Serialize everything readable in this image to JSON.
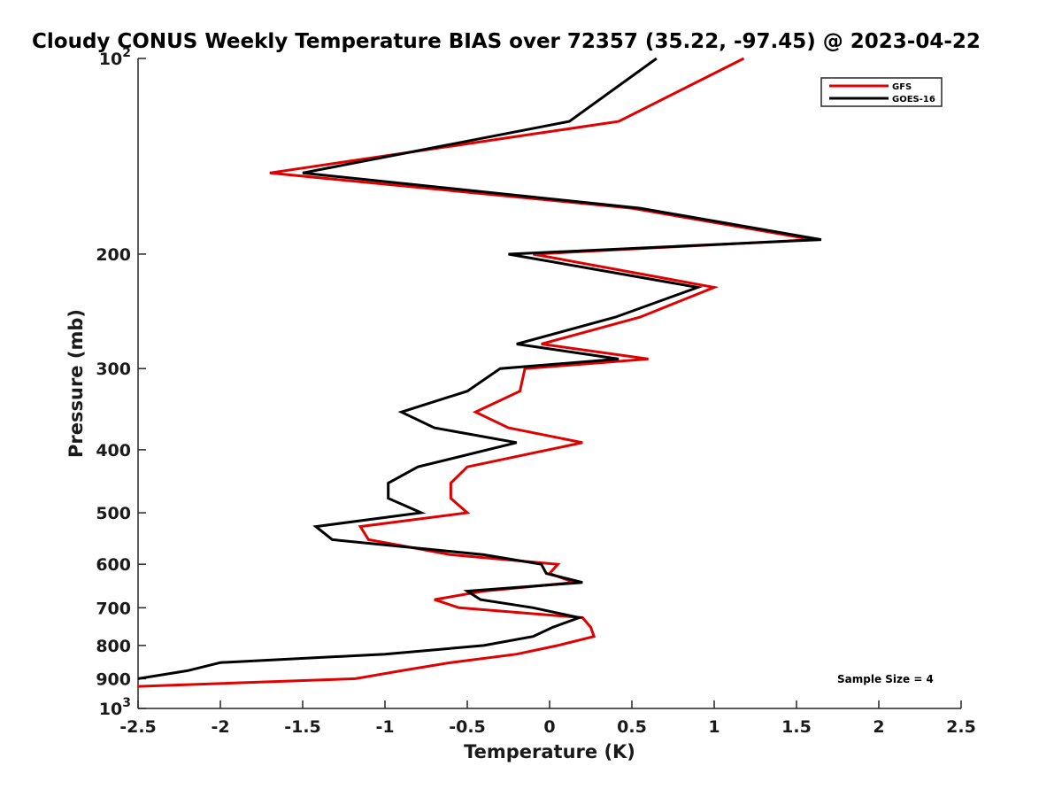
{
  "chart_data": {
    "type": "line",
    "title": "Cloudy CONUS Weekly Temperature BIAS over 72357 (35.22, -97.45) @ 2023-04-22",
    "xlabel": "Temperature (K)",
    "ylabel": "Pressure (mb)",
    "xlim": [
      -2.5,
      2.5
    ],
    "ylim": [
      1000,
      100
    ],
    "y_scale": "log",
    "y_reversed": true,
    "grid": false,
    "legend_position": "top-right",
    "x_ticks": [
      {
        "value": -2.5,
        "label": "-2.5"
      },
      {
        "value": -2,
        "label": "-2"
      },
      {
        "value": -1.5,
        "label": "-1.5"
      },
      {
        "value": -1,
        "label": "-1"
      },
      {
        "value": -0.5,
        "label": "-0.5"
      },
      {
        "value": 0,
        "label": "0"
      },
      {
        "value": 0.5,
        "label": "0.5"
      },
      {
        "value": 1,
        "label": "1"
      },
      {
        "value": 1.5,
        "label": "1.5"
      },
      {
        "value": 2,
        "label": "2"
      },
      {
        "value": 2.5,
        "label": "2.5"
      }
    ],
    "y_ticks": [
      {
        "value": 100,
        "label": "10",
        "sup": "2"
      },
      {
        "value": 200,
        "label": "200",
        "sup": ""
      },
      {
        "value": 300,
        "label": "300",
        "sup": ""
      },
      {
        "value": 400,
        "label": "400",
        "sup": ""
      },
      {
        "value": 500,
        "label": "500",
        "sup": ""
      },
      {
        "value": 600,
        "label": "600",
        "sup": ""
      },
      {
        "value": 700,
        "label": "700",
        "sup": ""
      },
      {
        "value": 800,
        "label": "800",
        "sup": ""
      },
      {
        "value": 900,
        "label": "900",
        "sup": ""
      },
      {
        "value": 1000,
        "label": "10",
        "sup": "3"
      }
    ],
    "annotation": "Sample Size = 4",
    "series": [
      {
        "name": "GFS",
        "color": "#e00000",
        "points": [
          {
            "x": 1.18,
            "y": 100
          },
          {
            "x": 0.42,
            "y": 125
          },
          {
            "x": -1.7,
            "y": 150
          },
          {
            "x": 0.5,
            "y": 170
          },
          {
            "x": 1.6,
            "y": 190
          },
          {
            "x": -0.1,
            "y": 200
          },
          {
            "x": 1.0,
            "y": 225
          },
          {
            "x": 0.55,
            "y": 250
          },
          {
            "x": -0.05,
            "y": 275
          },
          {
            "x": 0.6,
            "y": 290
          },
          {
            "x": -0.15,
            "y": 300
          },
          {
            "x": -0.18,
            "y": 325
          },
          {
            "x": -0.45,
            "y": 350
          },
          {
            "x": -0.25,
            "y": 370
          },
          {
            "x": 0.2,
            "y": 390
          },
          {
            "x": -0.5,
            "y": 425
          },
          {
            "x": -0.6,
            "y": 450
          },
          {
            "x": -0.6,
            "y": 475
          },
          {
            "x": -0.5,
            "y": 500
          },
          {
            "x": -1.15,
            "y": 525
          },
          {
            "x": -1.1,
            "y": 550
          },
          {
            "x": -0.6,
            "y": 580
          },
          {
            "x": 0.05,
            "y": 600
          },
          {
            "x": 0.0,
            "y": 620
          },
          {
            "x": 0.15,
            "y": 640
          },
          {
            "x": -0.4,
            "y": 660
          },
          {
            "x": -0.7,
            "y": 680
          },
          {
            "x": -0.55,
            "y": 700
          },
          {
            "x": 0.2,
            "y": 725
          },
          {
            "x": 0.25,
            "y": 750
          },
          {
            "x": 0.27,
            "y": 775
          },
          {
            "x": 0.05,
            "y": 800
          },
          {
            "x": -0.2,
            "y": 825
          },
          {
            "x": -0.6,
            "y": 850
          },
          {
            "x": -0.9,
            "y": 875
          },
          {
            "x": -1.18,
            "y": 900
          },
          {
            "x": -2.5,
            "y": 925
          }
        ]
      },
      {
        "name": "GOES-16",
        "color": "#000000",
        "points": [
          {
            "x": 0.65,
            "y": 100
          },
          {
            "x": 0.12,
            "y": 125
          },
          {
            "x": -1.5,
            "y": 150
          },
          {
            "x": 0.55,
            "y": 170
          },
          {
            "x": 1.65,
            "y": 190
          },
          {
            "x": -0.25,
            "y": 200
          },
          {
            "x": 0.9,
            "y": 225
          },
          {
            "x": 0.4,
            "y": 250
          },
          {
            "x": -0.2,
            "y": 275
          },
          {
            "x": 0.42,
            "y": 290
          },
          {
            "x": -0.3,
            "y": 300
          },
          {
            "x": -0.5,
            "y": 325
          },
          {
            "x": -0.9,
            "y": 350
          },
          {
            "x": -0.7,
            "y": 370
          },
          {
            "x": -0.2,
            "y": 390
          },
          {
            "x": -0.8,
            "y": 425
          },
          {
            "x": -0.98,
            "y": 450
          },
          {
            "x": -0.98,
            "y": 475
          },
          {
            "x": -0.78,
            "y": 500
          },
          {
            "x": -1.42,
            "y": 525
          },
          {
            "x": -1.32,
            "y": 550
          },
          {
            "x": -0.4,
            "y": 580
          },
          {
            "x": -0.05,
            "y": 600
          },
          {
            "x": -0.02,
            "y": 620
          },
          {
            "x": 0.2,
            "y": 640
          },
          {
            "x": -0.5,
            "y": 660
          },
          {
            "x": -0.42,
            "y": 680
          },
          {
            "x": -0.1,
            "y": 700
          },
          {
            "x": 0.18,
            "y": 725
          },
          {
            "x": 0.02,
            "y": 750
          },
          {
            "x": -0.1,
            "y": 775
          },
          {
            "x": -0.4,
            "y": 800
          },
          {
            "x": -1.0,
            "y": 825
          },
          {
            "x": -2.0,
            "y": 850
          },
          {
            "x": -2.2,
            "y": 875
          },
          {
            "x": -2.5,
            "y": 900
          }
        ]
      }
    ]
  }
}
